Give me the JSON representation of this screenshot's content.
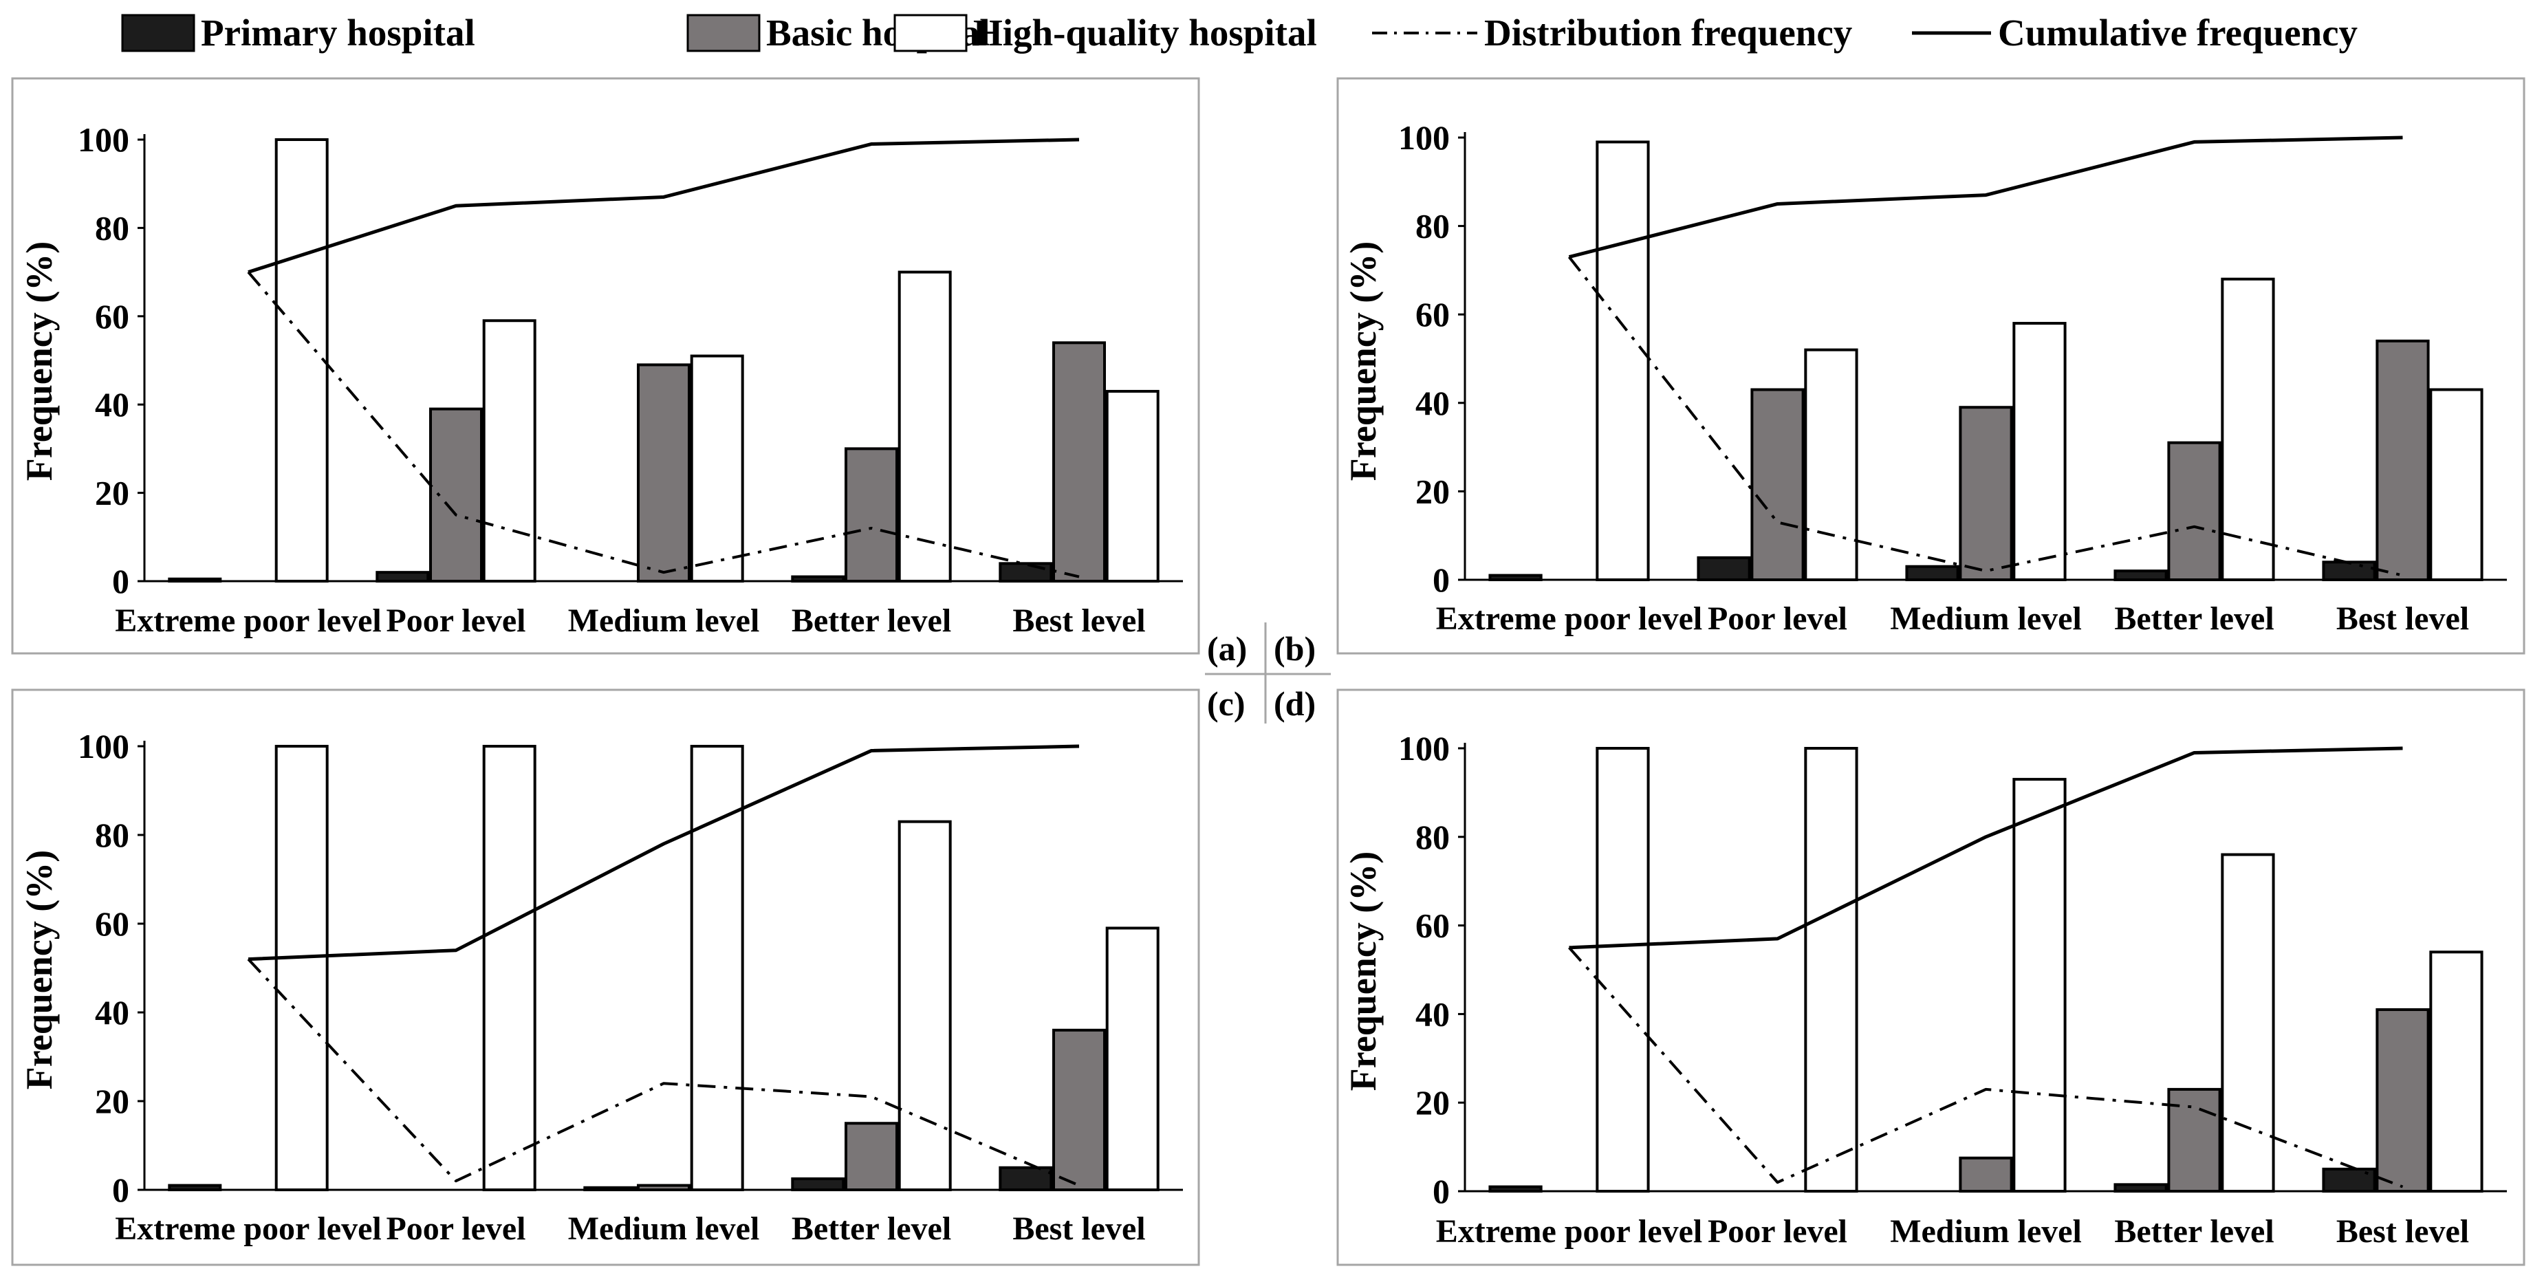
{
  "legend": {
    "primary": "Primary hospital",
    "basic": "Basic hospital",
    "high": "High-quality hospital",
    "distribution": "Distribution frequency",
    "cumulative": "Cumulative frequency"
  },
  "colors": {
    "primary": "#1c1c1c",
    "basic": "#7a7677",
    "high": "#ffffff",
    "line": "#000000",
    "frame": "#a6a6a6"
  },
  "panel_labels": [
    "(a)",
    "(b)",
    "(c)",
    "(d)"
  ],
  "chart_data": [
    {
      "type": "bar",
      "panel": "(a)",
      "ylabel": "Frequency (%)",
      "ylim": [
        0,
        100
      ],
      "yticks": [
        "0",
        "20",
        "40",
        "60",
        "80",
        "100"
      ],
      "categories": [
        "Extreme poor level",
        "Poor level",
        "Medium level",
        "Better level",
        "Best level"
      ],
      "series": [
        {
          "name": "Primary hospital",
          "values": [
            0.5,
            2,
            0,
            1,
            4
          ]
        },
        {
          "name": "Basic hospital",
          "values": [
            0,
            39,
            49,
            30,
            54
          ]
        },
        {
          "name": "High-quality hospital",
          "values": [
            100,
            59,
            51,
            70,
            43
          ]
        }
      ],
      "lines": [
        {
          "name": "Distribution frequency",
          "values": [
            70,
            15,
            2,
            12,
            1
          ]
        },
        {
          "name": "Cumulative frequency",
          "values": [
            70,
            85,
            87,
            99,
            100
          ]
        }
      ]
    },
    {
      "type": "bar",
      "panel": "(b)",
      "ylabel": "Frequency (%)",
      "ylim": [
        0,
        100
      ],
      "yticks": [
        "0",
        "20",
        "40",
        "60",
        "80",
        "100"
      ],
      "categories": [
        "Extreme poor level",
        "Poor level",
        "Medium level",
        "Better level",
        "Best level"
      ],
      "series": [
        {
          "name": "Primary hospital",
          "values": [
            1,
            5,
            3,
            2,
            4
          ]
        },
        {
          "name": "Basic hospital",
          "values": [
            0,
            43,
            39,
            31,
            54
          ]
        },
        {
          "name": "High-quality hospital",
          "values": [
            99,
            52,
            58,
            68,
            43
          ]
        }
      ],
      "lines": [
        {
          "name": "Distribution frequency",
          "values": [
            73,
            13,
            2,
            12,
            1
          ]
        },
        {
          "name": "Cumulative frequency",
          "values": [
            73,
            85,
            87,
            99,
            100
          ]
        }
      ]
    },
    {
      "type": "bar",
      "panel": "(c)",
      "ylabel": "Frequency (%)",
      "ylim": [
        0,
        100
      ],
      "yticks": [
        "0",
        "20",
        "40",
        "60",
        "80",
        "100"
      ],
      "categories": [
        "Extreme poor level",
        "Poor level",
        "Medium level",
        "Better level",
        "Best level"
      ],
      "series": [
        {
          "name": "Primary hospital",
          "values": [
            1,
            0,
            0.5,
            2.5,
            5
          ]
        },
        {
          "name": "Basic hospital",
          "values": [
            0,
            0,
            1,
            15,
            36
          ]
        },
        {
          "name": "High-quality hospital",
          "values": [
            100,
            100,
            100,
            83,
            59
          ]
        }
      ],
      "lines": [
        {
          "name": "Distribution frequency",
          "values": [
            52,
            2,
            24,
            21,
            1
          ]
        },
        {
          "name": "Cumulative frequency",
          "values": [
            52,
            54,
            78,
            99,
            100
          ]
        }
      ]
    },
    {
      "type": "bar",
      "panel": "(d)",
      "ylabel": "Frequency (%)",
      "ylim": [
        0,
        100
      ],
      "yticks": [
        "0",
        "20",
        "40",
        "60",
        "80",
        "100"
      ],
      "categories": [
        "Extreme poor level",
        "Poor level",
        "Medium level",
        "Better level",
        "Best level"
      ],
      "series": [
        {
          "name": "Primary hospital",
          "values": [
            1,
            0,
            0,
            1.5,
            5
          ]
        },
        {
          "name": "Basic hospital",
          "values": [
            0,
            0,
            7.5,
            23,
            41
          ]
        },
        {
          "name": "High-quality hospital",
          "values": [
            100,
            100,
            93,
            76,
            54
          ]
        }
      ],
      "lines": [
        {
          "name": "Distribution frequency",
          "values": [
            55,
            2,
            23,
            19,
            1
          ]
        },
        {
          "name": "Cumulative frequency",
          "values": [
            55,
            57,
            80,
            99,
            100
          ]
        }
      ]
    }
  ]
}
